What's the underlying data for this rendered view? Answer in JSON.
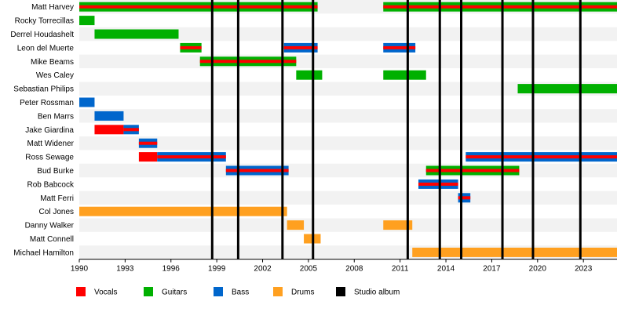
{
  "chart_data": {
    "type": "timeline",
    "title": "",
    "x_range": [
      1990,
      2025.2
    ],
    "x_ticks": [
      "1990",
      "1993",
      "1996",
      "1999",
      "2002",
      "2005",
      "2008",
      "2011",
      "2014",
      "2017",
      "2020",
      "2023"
    ],
    "roles": [
      {
        "key": "vocals",
        "label": "Vocals",
        "color": "#ff0000"
      },
      {
        "key": "guitars",
        "label": "Guitars",
        "color": "#00b000"
      },
      {
        "key": "bass",
        "label": "Bass",
        "color": "#0066cc"
      },
      {
        "key": "drums",
        "label": "Drums",
        "color": "#ffa020"
      },
      {
        "key": "album",
        "label": "Studio album",
        "color": "#000000"
      }
    ],
    "albums": [
      1998.7,
      2000.4,
      2003.3,
      2005.3,
      2011.5,
      2013.6,
      2015.0,
      2017.7,
      2019.7,
      2022.8
    ],
    "members": [
      {
        "name": "Matt Harvey",
        "periods": [
          {
            "from": 1990,
            "to": 2005.6,
            "main": "guitars",
            "inner": "vocals"
          },
          {
            "from": 2009.9,
            "to": 2025.2,
            "main": "guitars",
            "inner": "vocals"
          }
        ]
      },
      {
        "name": "Rocky Torrecillas",
        "periods": [
          {
            "from": 1990,
            "to": 1991,
            "main": "guitars"
          }
        ]
      },
      {
        "name": "Derrel Houdashelt",
        "periods": [
          {
            "from": 1991,
            "to": 1996.5,
            "main": "guitars"
          }
        ]
      },
      {
        "name": "Leon del Muerte",
        "periods": [
          {
            "from": 1996.6,
            "to": 1998,
            "main": "guitars",
            "inner": "vocals"
          },
          {
            "from": 2003.4,
            "to": 2005.6,
            "main": "bass",
            "inner": "vocals"
          },
          {
            "from": 2009.9,
            "to": 2012,
            "main": "bass",
            "inner": "vocals"
          }
        ]
      },
      {
        "name": "Mike Beams",
        "periods": [
          {
            "from": 1997.9,
            "to": 2004.2,
            "main": "guitars",
            "inner": "vocals"
          }
        ]
      },
      {
        "name": "Wes Caley",
        "periods": [
          {
            "from": 2004.2,
            "to": 2005.9,
            "main": "guitars"
          },
          {
            "from": 2009.9,
            "to": 2012.7,
            "main": "guitars"
          }
        ]
      },
      {
        "name": "Sebastian Philips",
        "periods": [
          {
            "from": 2018.7,
            "to": 2025.2,
            "main": "guitars"
          }
        ]
      },
      {
        "name": "Peter Rossman",
        "periods": [
          {
            "from": 1990,
            "to": 1991,
            "main": "bass"
          }
        ]
      },
      {
        "name": "Ben Marrs",
        "periods": [
          {
            "from": 1991,
            "to": 1992.9,
            "main": "bass"
          }
        ]
      },
      {
        "name": "Jake Giardina",
        "periods": [
          {
            "from": 1991,
            "to": 1992.9,
            "main": "vocals"
          },
          {
            "from": 1992.9,
            "to": 1993.9,
            "main": "bass",
            "inner": "vocals"
          }
        ]
      },
      {
        "name": "Matt Widener",
        "periods": [
          {
            "from": 1993.9,
            "to": 1995.1,
            "main": "bass",
            "inner": "vocals"
          }
        ]
      },
      {
        "name": "Ross Sewage",
        "periods": [
          {
            "from": 1993.9,
            "to": 1995.1,
            "main": "vocals"
          },
          {
            "from": 1995.1,
            "to": 1999.6,
            "main": "bass",
            "inner": "vocals"
          },
          {
            "from": 2015.3,
            "to": 2025.2,
            "main": "bass",
            "inner": "vocals"
          }
        ]
      },
      {
        "name": "Bud Burke",
        "periods": [
          {
            "from": 1999.6,
            "to": 2003.7,
            "main": "bass",
            "inner": "vocals"
          },
          {
            "from": 2012.7,
            "to": 2018.8,
            "main": "guitars",
            "inner": "vocals"
          }
        ]
      },
      {
        "name": "Rob Babcock",
        "periods": [
          {
            "from": 2012.2,
            "to": 2014.8,
            "main": "bass",
            "inner": "vocals"
          }
        ]
      },
      {
        "name": "Matt Ferri",
        "periods": [
          {
            "from": 2014.8,
            "to": 2015.6,
            "main": "bass",
            "inner": "vocals"
          }
        ]
      },
      {
        "name": "Col Jones",
        "periods": [
          {
            "from": 1990,
            "to": 2003.6,
            "main": "drums"
          }
        ]
      },
      {
        "name": "Danny Walker",
        "periods": [
          {
            "from": 2003.6,
            "to": 2004.7,
            "main": "drums"
          },
          {
            "from": 2009.9,
            "to": 2011.8,
            "main": "drums"
          }
        ]
      },
      {
        "name": "Matt Connell",
        "periods": [
          {
            "from": 2004.7,
            "to": 2005.8,
            "main": "drums"
          }
        ]
      },
      {
        "name": "Michael Hamilton",
        "periods": [
          {
            "from": 2011.8,
            "to": 2025.2,
            "main": "drums"
          }
        ]
      }
    ]
  }
}
